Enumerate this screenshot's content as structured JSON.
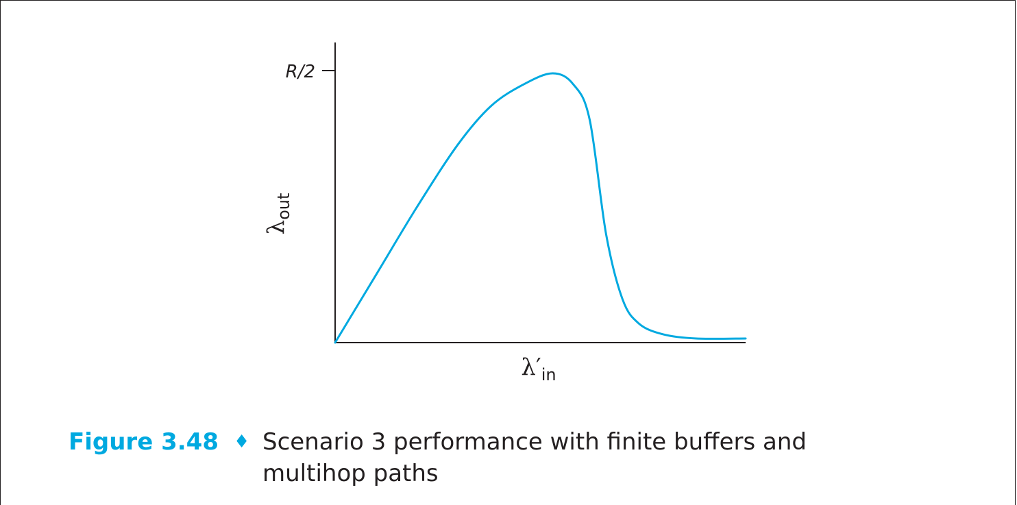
{
  "chart_data": {
    "type": "line",
    "y_tick_labels": [
      "R/2"
    ],
    "y_tick_value": 1.0,
    "ylabel": "λ",
    "ylabel_sub": "out",
    "xlabel": "λ′",
    "xlabel_sub": "in",
    "xlim": [
      0,
      1
    ],
    "ylim": [
      0,
      1.1
    ],
    "grid": false,
    "series": [
      {
        "color": "#00a9e0",
        "x": [
          0.0,
          0.1,
          0.2,
          0.3,
          0.38,
          0.46,
          0.53,
          0.58,
          0.62,
          0.66,
          0.7,
          0.74,
          0.8,
          0.88,
          1.0
        ],
        "y": [
          0.0,
          0.25,
          0.5,
          0.73,
          0.87,
          0.95,
          0.99,
          0.95,
          0.82,
          0.4,
          0.16,
          0.07,
          0.03,
          0.015,
          0.015
        ]
      }
    ]
  },
  "caption": {
    "label": "Figure 3.48",
    "separator": "♦",
    "text": "Scenario 3 performance with finite buffers and multihop paths"
  },
  "colors": {
    "accent": "#00a9e0",
    "ink": "#231f20"
  }
}
